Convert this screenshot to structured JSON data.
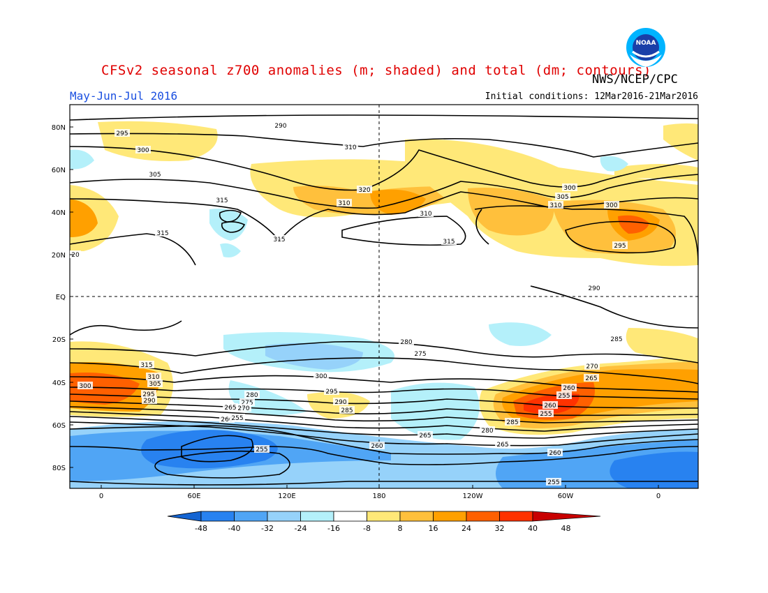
{
  "header": {
    "title": "CFSv2 seasonal z700 anomalies (m; shaded) and total (dm; contours)",
    "agency": "NWS/NCEP/CPC",
    "period": "May-Jun-Jul 2016",
    "initial_conditions": "Initial conditions: 12Mar2016-21Mar2016",
    "logo_text": "NOAA"
  },
  "map": {
    "lat_labels": [
      "80N",
      "60N",
      "40N",
      "20N",
      "EQ",
      "20S",
      "40S",
      "60S",
      "80S"
    ],
    "lon_labels": [
      "0",
      "60E",
      "120E",
      "180",
      "120W",
      "60W",
      "0"
    ],
    "contour_labels": [
      "290",
      "295",
      "300",
      "305",
      "310",
      "315",
      "320",
      "310",
      "310",
      "315",
      "315",
      "315",
      "300",
      "305",
      "310",
      "300",
      "295",
      "290",
      "285",
      "280",
      "275",
      "270",
      "265",
      "260",
      "255",
      "260",
      "255",
      "265",
      "260",
      "255",
      "255",
      "300",
      "295",
      "290",
      "285",
      "280",
      "275",
      "270",
      "265",
      "260",
      "315",
      "310",
      "305",
      "300",
      "295",
      "290",
      "285",
      "280",
      "265",
      "260",
      "255",
      "20"
    ]
  },
  "colorbar": {
    "ticks": [
      "-48",
      "-40",
      "-32",
      "-24",
      "-16",
      "-8",
      "8",
      "16",
      "24",
      "32",
      "40",
      "48"
    ],
    "colors": [
      "#1464d2",
      "#2882f0",
      "#50a5f5",
      "#96d2fa",
      "#b4f0fa",
      "#ffffff",
      "#ffe878",
      "#ffc03c",
      "#ffa000",
      "#ff6000",
      "#ff3200",
      "#c80000"
    ]
  },
  "map_colors": {
    "pos1": "#ffe878",
    "pos2": "#ffc03c",
    "pos3": "#ffa000",
    "pos4": "#ff6000",
    "pos5": "#ff3200",
    "neg1": "#b4f0fa",
    "neg2": "#96d2fa",
    "neg3": "#50a5f5",
    "neg4": "#2882f0"
  }
}
